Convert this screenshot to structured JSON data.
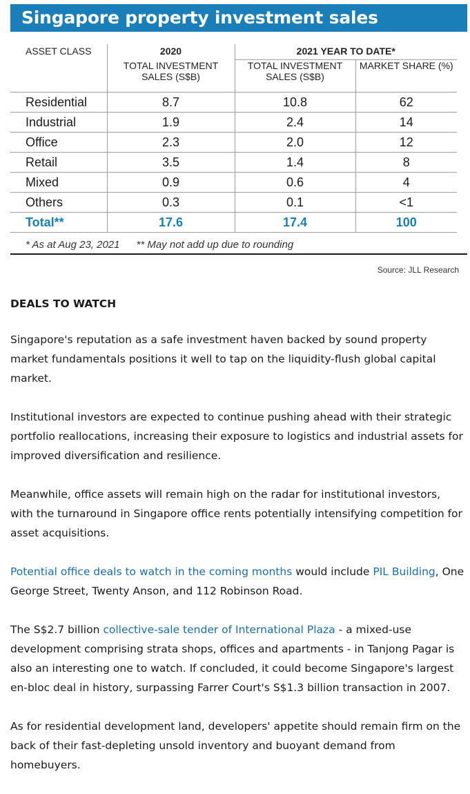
{
  "graphic": {
    "title": "Singapore property investment sales",
    "headers": {
      "asset_class": "ASSET CLASS",
      "year_2020": "2020",
      "year_2021": "2021 YEAR TO DATE*",
      "col_2020": "TOTAL INVESTMENT SALES (S$B)",
      "col_2021": "TOTAL INVESTMENT SALES (S$B)",
      "col_share": "MARKET SHARE (%)"
    },
    "rows": [
      {
        "asset": "Residential",
        "v2020": "8.7",
        "v2021": "10.8",
        "share": "62"
      },
      {
        "asset": "Industrial",
        "v2020": "1.9",
        "v2021": "2.4",
        "share": "14"
      },
      {
        "asset": "Office",
        "v2020": "2.3",
        "v2021": "2.0",
        "share": "12"
      },
      {
        "asset": "Retail",
        "v2020": "3.5",
        "v2021": "1.4",
        "share": "8"
      },
      {
        "asset": "Mixed",
        "v2020": "0.9",
        "v2021": "0.6",
        "share": "4"
      },
      {
        "asset": "Others",
        "v2020": "0.3",
        "v2021": "0.1",
        "share": "<1"
      }
    ],
    "total": {
      "asset": "Total**",
      "v2020": "17.6",
      "v2021": "17.4",
      "share": "100"
    },
    "note_1": "* As at Aug 23, 2021",
    "note_2": "** May not add up due to rounding",
    "source": "Source: JLL Research",
    "accent_color": "#1a7fb8"
  },
  "article": {
    "heading": "DEALS TO WATCH",
    "p1": "Singapore's reputation as a safe investment haven backed by sound property market fundamentals positions it well to tap on the liquidity-flush global capital market.",
    "p2": "Institutional investors are expected to continue pushing ahead with their strategic portfolio reallocations, increasing their exposure to logistics and industrial assets for improved diversification and resilience.",
    "p3": "Meanwhile, office assets will remain high on the radar for institutional investors, with the turnaround in Singapore office rents potentially intensifying competition for asset acquisitions.",
    "p4": {
      "link1": "Potential office deals to watch in the coming months",
      "text1": " would include ",
      "link2": "PIL Building",
      "text2": ", One George Street, Twenty Anson, and 112 Robinson Road."
    },
    "p5": {
      "text1": "The S$2.7 billion ",
      "link1": "collective-sale tender of International Plaza",
      "text2": " - a mixed-use development comprising strata shops, offices and apartments - in Tanjong Pagar is also an interesting one to watch. If concluded, it could become Singapore's largest en-bloc deal in history, surpassing Farrer Court's S$1.3 billion transaction in 2007."
    },
    "p6": "As for residential development land, developers' appetite should remain firm on the back of their fast-depleting unsold inventory and buoyant demand from homebuyers.",
    "link_color": "#1a6ea8"
  }
}
